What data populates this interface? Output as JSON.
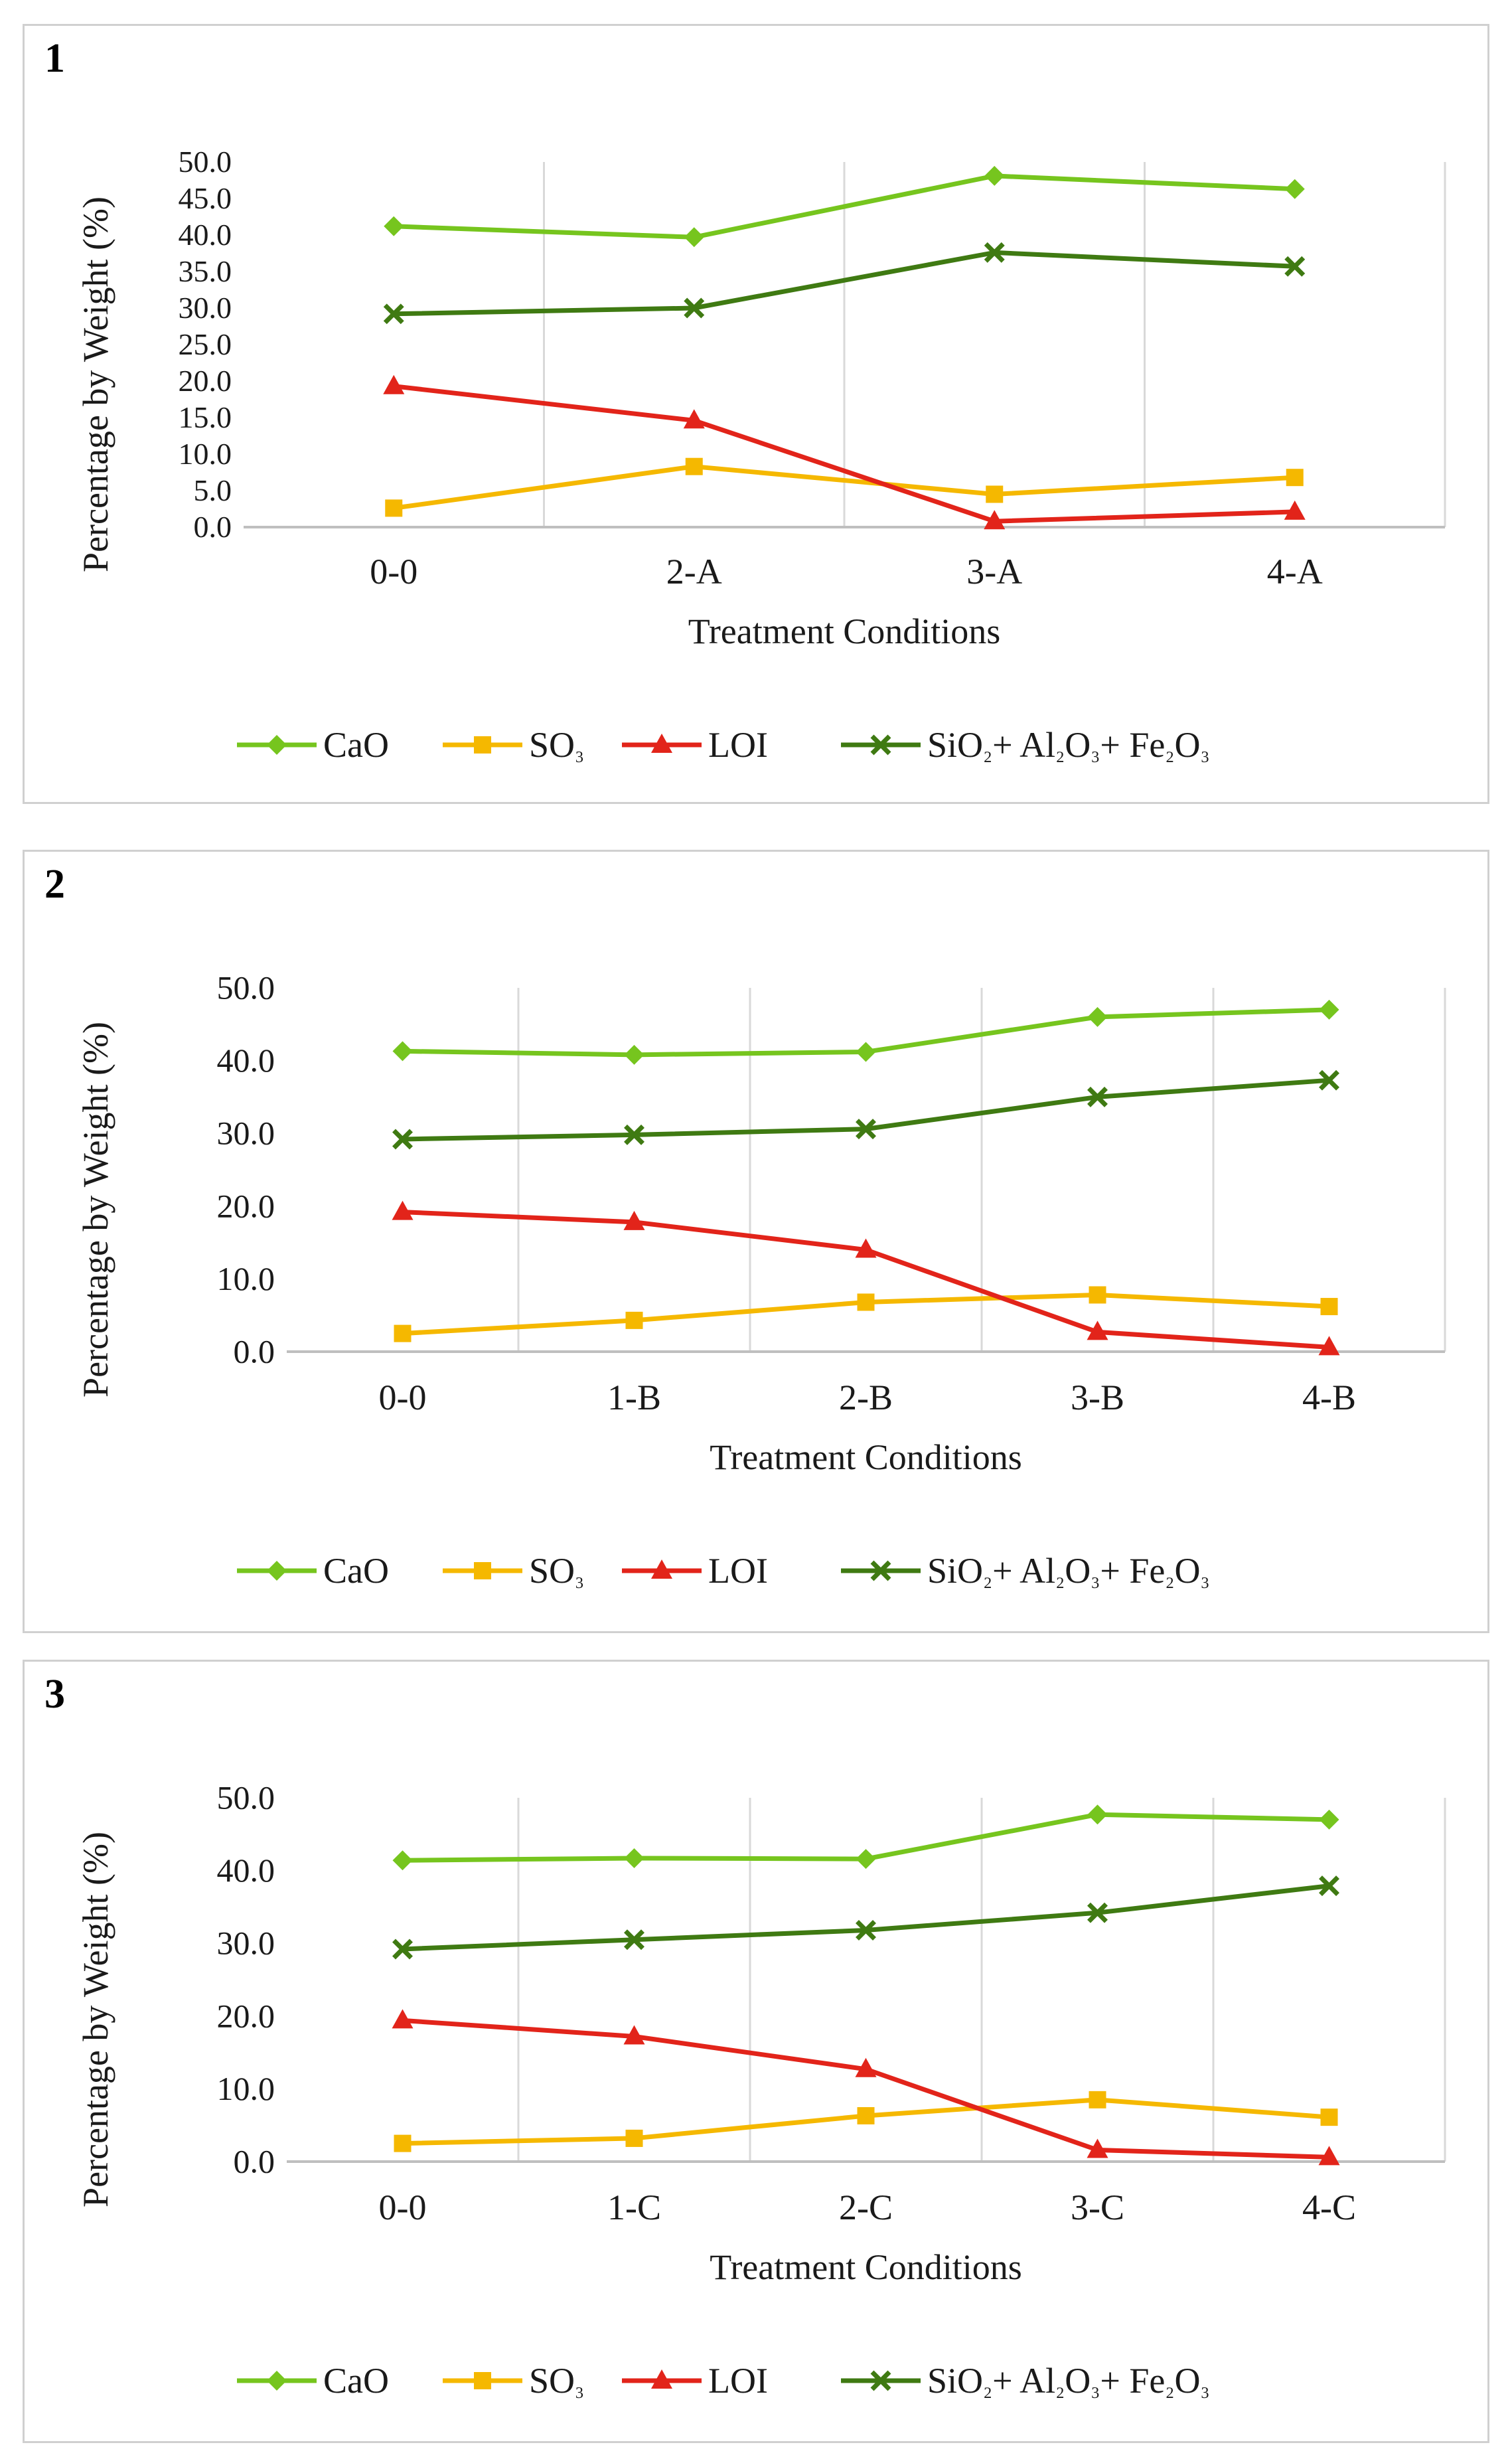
{
  "colors": {
    "cao": "#76c51e",
    "so3": "#f5b800",
    "loi": "#e2241a",
    "oxides": "#3f7a12",
    "grid": "#d9d9d9",
    "axis": "#bfbfbf"
  },
  "chart_data": [
    {
      "type": "line",
      "panel_label": "1",
      "xlabel": "Treatment Conditions",
      "ylabel": "Percentage by Weight (%)",
      "ylim": [
        0,
        50
      ],
      "yticks": [
        "0.0",
        "5.0",
        "10.0",
        "15.0",
        "20.0",
        "25.0",
        "30.0",
        "35.0",
        "40.0",
        "45.0",
        "50.0"
      ],
      "categories": [
        "0-0",
        "2-A",
        "3-A",
        "4-A"
      ],
      "series": [
        {
          "key": "cao",
          "name": "CaO",
          "marker": "diamond",
          "values": [
            41.2,
            39.7,
            48.1,
            46.3
          ]
        },
        {
          "key": "so3",
          "name": "SO₃",
          "marker": "square",
          "values": [
            2.6,
            8.3,
            4.5,
            6.8
          ]
        },
        {
          "key": "loi",
          "name": "LOI",
          "marker": "triangle",
          "values": [
            19.3,
            14.6,
            0.8,
            2.1
          ]
        },
        {
          "key": "oxides",
          "name": "SiO₂+ Al₂O₃+ Fe₂O₃",
          "marker": "x",
          "values": [
            29.2,
            30.0,
            37.6,
            35.7
          ]
        }
      ],
      "legend": "bottom"
    },
    {
      "type": "line",
      "panel_label": "2",
      "xlabel": "Treatment Conditions",
      "ylabel": "Percentage by Weight (%)",
      "ylim": [
        0,
        50
      ],
      "yticks": [
        "0.0",
        "10.0",
        "20.0",
        "30.0",
        "40.0",
        "50.0"
      ],
      "categories": [
        "0-0",
        "1-B",
        "2-B",
        "3-B",
        "4-B"
      ],
      "series": [
        {
          "key": "cao",
          "name": "CaO",
          "marker": "diamond",
          "values": [
            41.3,
            40.8,
            41.2,
            46.0,
            47.0
          ]
        },
        {
          "key": "so3",
          "name": "SO₃",
          "marker": "square",
          "values": [
            2.5,
            4.3,
            6.8,
            7.8,
            6.2
          ]
        },
        {
          "key": "loi",
          "name": "LOI",
          "marker": "triangle",
          "values": [
            19.2,
            17.8,
            14.0,
            2.7,
            0.6
          ]
        },
        {
          "key": "oxides",
          "name": "SiO₂+ Al₂O₃+ Fe₂O₃",
          "marker": "x",
          "values": [
            29.2,
            29.8,
            30.6,
            35.0,
            37.3
          ]
        }
      ],
      "legend": "bottom"
    },
    {
      "type": "line",
      "panel_label": "3",
      "xlabel": "Treatment Conditions",
      "ylabel": "Percentage by Weight (%)",
      "ylim": [
        0,
        50
      ],
      "yticks": [
        "0.0",
        "10.0",
        "20.0",
        "30.0",
        "40.0",
        "50.0"
      ],
      "categories": [
        "0-0",
        "1-C",
        "2-C",
        "3-C",
        "4-C"
      ],
      "series": [
        {
          "key": "cao",
          "name": "CaO",
          "marker": "diamond",
          "values": [
            41.4,
            41.7,
            41.6,
            47.7,
            47.0
          ]
        },
        {
          "key": "so3",
          "name": "SO₃",
          "marker": "square",
          "values": [
            2.5,
            3.2,
            6.3,
            8.5,
            6.1
          ]
        },
        {
          "key": "loi",
          "name": "LOI",
          "marker": "triangle",
          "values": [
            19.4,
            17.2,
            12.7,
            1.6,
            0.6
          ]
        },
        {
          "key": "oxides",
          "name": "SiO₂+ Al₂O₃+ Fe₂O₃",
          "marker": "x",
          "values": [
            29.2,
            30.5,
            31.8,
            34.2,
            37.9
          ]
        }
      ],
      "legend": "bottom"
    }
  ]
}
